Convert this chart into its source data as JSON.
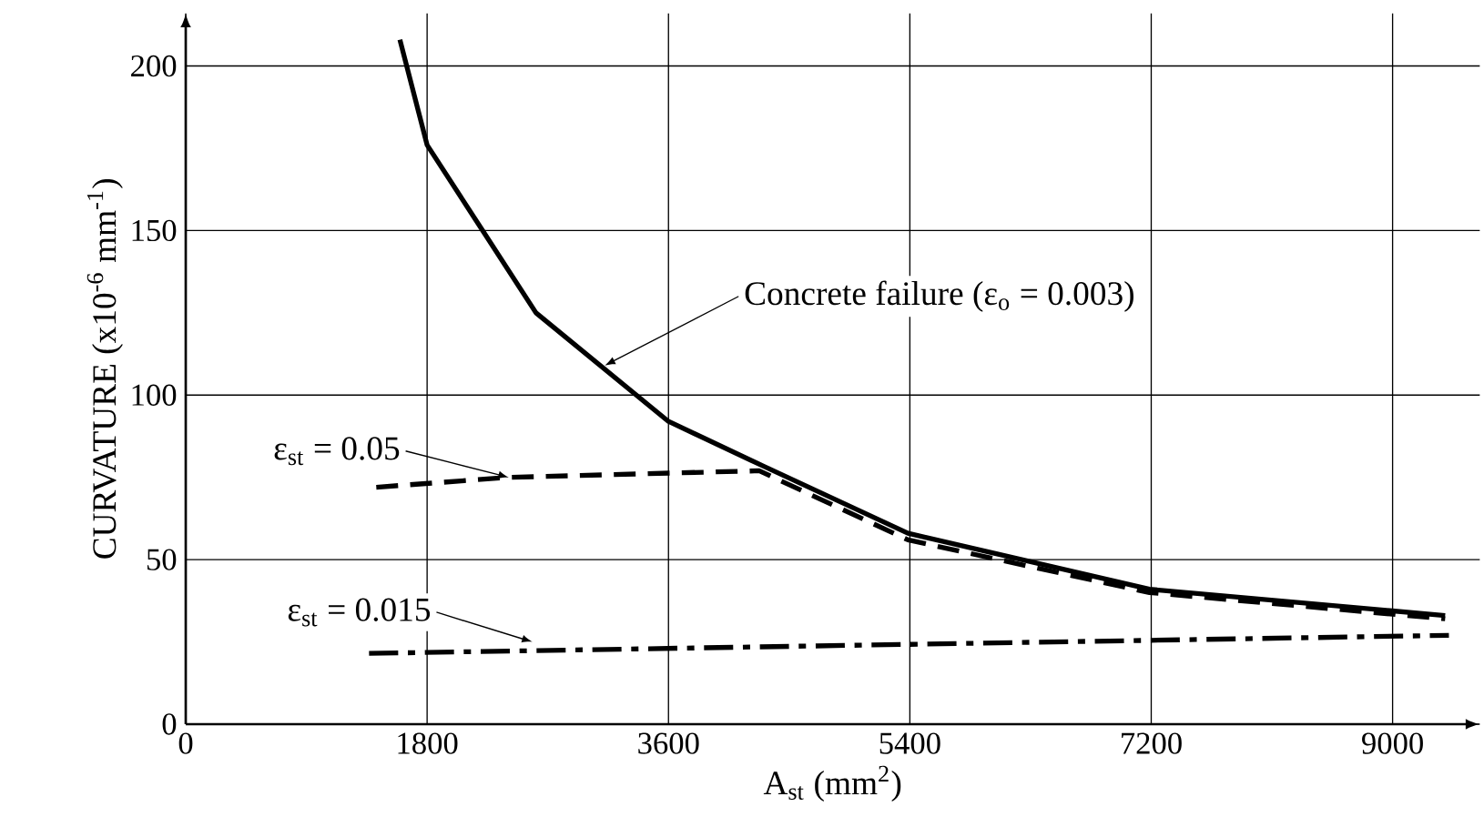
{
  "chart_data": {
    "type": "line",
    "xlabel": "A$_{st}$ (mm$^{2}$)",
    "ylabel": "CURVATURE (x10$^{-6}$ mm$^{-1}$)",
    "xlim": [
      0,
      9650
    ],
    "ylim": [
      0,
      216
    ],
    "xticks": [
      0,
      1800,
      3600,
      5400,
      7200,
      9000
    ],
    "yticks": [
      0,
      50,
      100,
      150,
      200
    ],
    "grid": true,
    "series": [
      {
        "color": "#000000",
        "line_style": "solid",
        "x": [
          1597,
          1800,
          2612,
          3600,
          4276,
          5386,
          7187,
          9392
        ],
        "values": [
          208,
          176,
          125,
          92,
          79,
          58,
          41,
          33
        ]
      },
      {
        "color": "#000000",
        "line_style": "dashed",
        "x": [
          1421,
          2409,
          4276,
          5386,
          7187,
          9392
        ],
        "values": [
          72,
          75,
          77,
          56,
          40,
          32
        ]
      },
      {
        "color": "#000000",
        "line_style": "dashdot",
        "x": [
          1367,
          9420
        ],
        "values": [
          21.5,
          27
        ]
      }
    ],
    "annotations": [
      {
        "text": "Concrete failure (ε$_{o}$ = 0.003)",
        "x": 3126,
        "y": 109
      },
      {
        "text": "ε$_{st}$ = 0.05",
        "x": 2409,
        "y": 75
      },
      {
        "text": "ε$_{st}$ = 0.015",
        "x": 2585,
        "y": 25
      }
    ]
  }
}
